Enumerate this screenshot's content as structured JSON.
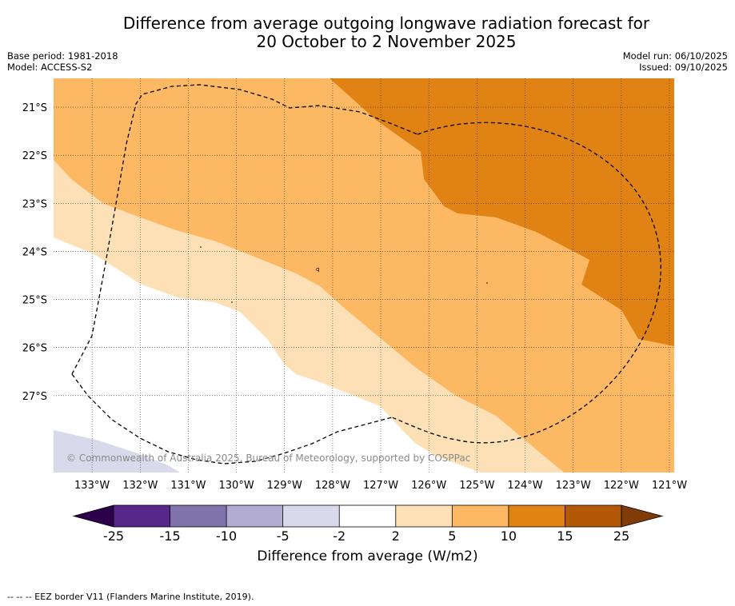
{
  "title": {
    "line1": "Difference from average outgoing longwave radiation forecast for",
    "line2": "20 October to 2 November 2025"
  },
  "meta": {
    "base_period": "Base period: 1981-2018",
    "model": "Model: ACCESS-S2",
    "model_run": "Model run: 06/10/2025",
    "issued": "Issued: 09/10/2025"
  },
  "map": {
    "region": "South Pacific Ocean",
    "longitude_range": [
      -133.8,
      -120.9
    ],
    "latitude_range": [
      -28.6,
      -20.4
    ],
    "lon_ticks": [
      {
        "value": -133,
        "label": "133°W"
      },
      {
        "value": -132,
        "label": "132°W"
      },
      {
        "value": -131,
        "label": "131°W"
      },
      {
        "value": -130,
        "label": "130°W"
      },
      {
        "value": -129,
        "label": "129°W"
      },
      {
        "value": -128,
        "label": "128°W"
      },
      {
        "value": -127,
        "label": "127°W"
      },
      {
        "value": -126,
        "label": "126°W"
      },
      {
        "value": -125,
        "label": "125°W"
      },
      {
        "value": -124,
        "label": "124°W"
      },
      {
        "value": -123,
        "label": "123°W"
      },
      {
        "value": -122,
        "label": "122°W"
      },
      {
        "value": -121,
        "label": "121°W"
      }
    ],
    "lat_ticks": [
      {
        "value": -21,
        "label": "21°S"
      },
      {
        "value": -22,
        "label": "22°S"
      },
      {
        "value": -23,
        "label": "23°S"
      },
      {
        "value": -24,
        "label": "24°S"
      },
      {
        "value": -25,
        "label": "25°S"
      },
      {
        "value": -26,
        "label": "26°S"
      },
      {
        "value": -27,
        "label": "27°S"
      }
    ],
    "copyright": "© Commonwealth of Australia 2025, Bureau of Meteorology, supported by COSPPac"
  },
  "colorbar": {
    "label": "Difference from average (W/m2)",
    "ticks": [
      "-25",
      "-15",
      "-10",
      "-5",
      "-2",
      "2",
      "5",
      "10",
      "15",
      "25"
    ],
    "colors": {
      "lt_-25": "#2d004b",
      "-25_-15": "#542788",
      "-15_-10": "#8073ac",
      "-10_-5": "#b2abd2",
      "-5_-2": "#d8daeb",
      "-2_2": "#ffffff",
      "2_5": "#fee0b6",
      "5_10": "#fdb863",
      "10_15": "#e08214",
      "15_25": "#b35806",
      "gt_25": "#7f3b08"
    }
  },
  "footnote": "--  --  -- EEZ border V11 (Flanders Marine Institute, 2019)."
}
